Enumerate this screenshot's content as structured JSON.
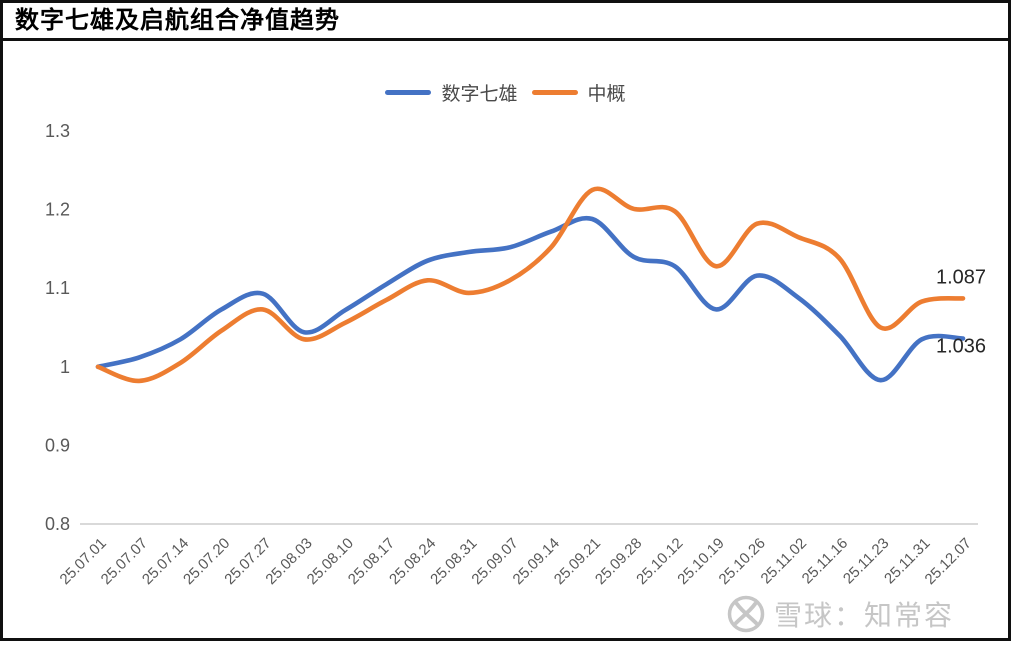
{
  "header": {
    "title": "数字七雄及启航组合净值趋势"
  },
  "chart_data": {
    "type": "line",
    "title": "数字七雄及启航组合净值趋势",
    "line_style": "smooth",
    "grid": "bottom baseline only",
    "legend_position": "top-center",
    "ylim": [
      0.8,
      1.3
    ],
    "ytick_labels": [
      "1.3",
      "1.2",
      "1.1",
      "1",
      "0.9",
      "0.8"
    ],
    "ytick_values": [
      1.3,
      1.2,
      1.1,
      1.0,
      0.9,
      0.8
    ],
    "categories": [
      "25.07.01",
      "25.07.07",
      "25.07.14",
      "25.07.20",
      "25.07.27",
      "25.08.03",
      "25.08.10",
      "25.08.17",
      "25.08.24",
      "25.08.31",
      "25.09.07",
      "25.09.14",
      "25.09.21",
      "25.09.28",
      "25.10.12",
      "25.10.19",
      "25.10.26",
      "25.11.02",
      "25.11.16",
      "25.11.23",
      "25.11.31",
      "25.12.07"
    ],
    "series": [
      {
        "name": "数字七雄",
        "color": "#4472C4",
        "end_label": "1.036",
        "values": [
          1.0,
          1.012,
          1.035,
          1.073,
          1.093,
          1.044,
          1.072,
          1.105,
          1.135,
          1.146,
          1.152,
          1.172,
          1.188,
          1.14,
          1.128,
          1.073,
          1.116,
          1.088,
          1.04,
          0.983,
          1.035,
          1.036
        ]
      },
      {
        "name": "中概",
        "color": "#ED7D31",
        "end_label": "1.087",
        "values": [
          1.0,
          0.982,
          1.005,
          1.046,
          1.073,
          1.035,
          1.056,
          1.085,
          1.11,
          1.094,
          1.11,
          1.152,
          1.225,
          1.201,
          1.198,
          1.128,
          1.182,
          1.165,
          1.138,
          1.05,
          1.083,
          1.087
        ]
      }
    ]
  },
  "watermark": {
    "text": "雪球：知常容",
    "icon": "xueqiu-snowball-logo"
  },
  "colors": {
    "axis_text": "#595959",
    "baseline": "#D9D9D9",
    "data_label": "#262626",
    "frame": "#101010"
  }
}
